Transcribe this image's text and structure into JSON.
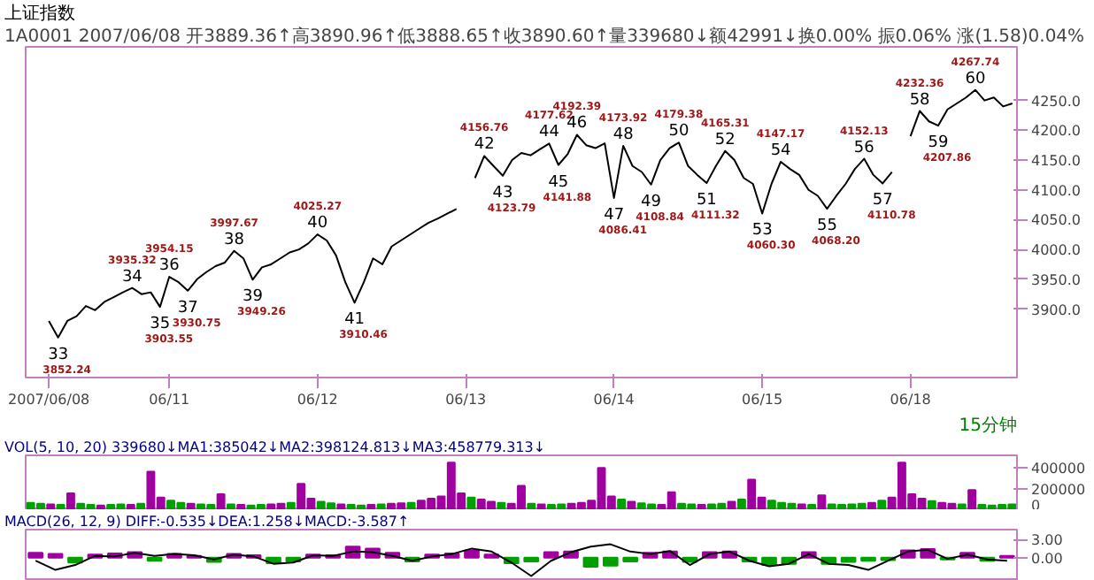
{
  "chart_data": [
    {
      "type": "line",
      "title": "上证指数",
      "subtitle": "1A0001 2007/06/08 开3889.36↑高3890.96↑低3888.65↑收3890.60↑量339680↓额42991↓换0.00% 振0.06% 涨(1.58)0.04%",
      "color": "#000000",
      "categories": [
        "2007/06/08",
        null,
        null,
        null,
        null,
        null,
        null,
        null,
        null,
        null,
        null,
        null,
        null,
        "06/11",
        null,
        null,
        null,
        null,
        null,
        null,
        null,
        null,
        null,
        null,
        null,
        null,
        null,
        null,
        null,
        "06/12",
        null,
        null,
        null,
        null,
        null,
        null,
        null,
        null,
        null,
        null,
        null,
        null,
        null,
        null,
        null,
        "06/13",
        null,
        null,
        null,
        null,
        null,
        null,
        null,
        null,
        null,
        null,
        null,
        null,
        null,
        null,
        null,
        "06/14",
        null,
        null,
        null,
        null,
        null,
        null,
        null,
        null,
        null,
        null,
        null,
        null,
        null,
        null,
        null,
        "06/15",
        null,
        null,
        null,
        null,
        null,
        null,
        null,
        null,
        null,
        null,
        null,
        null,
        null,
        null,
        null,
        "06/18",
        null,
        null,
        null,
        null,
        null,
        null,
        null,
        null,
        null,
        null,
        null
      ],
      "values": [
        3880,
        3852.24,
        3880,
        3888,
        3905,
        3898,
        3912,
        3920,
        3928,
        3935.32,
        3925,
        3928,
        3903.55,
        3954.15,
        3945,
        3930.75,
        3950,
        3962,
        3972,
        3978,
        3997.67,
        3985,
        3949.26,
        3970,
        3975,
        3985,
        3995,
        4000,
        4010,
        4025.27,
        4015,
        3990,
        3945,
        3910.46,
        3945,
        3985,
        3975,
        4005,
        4015,
        4025,
        4035,
        4045,
        4052,
        4060,
        4068,
        null,
        4120,
        4156.76,
        4140,
        4123.79,
        4150,
        4162,
        4158,
        4168,
        4177.62,
        4141.88,
        4160,
        4192.39,
        4175,
        4170,
        4178,
        4086.41,
        4173.92,
        4140,
        4130,
        4108.84,
        4150,
        4170,
        4179.38,
        4140,
        4125,
        4111.32,
        4140,
        4165.31,
        4150,
        4120,
        4110,
        4060.3,
        4110,
        4147.17,
        4135,
        4125,
        4100,
        4090,
        4068.2,
        4090,
        4110,
        4135,
        4152.13,
        4125,
        4110.78,
        4130,
        null,
        4190,
        4232.36,
        4215,
        4207.86,
        4235,
        4245,
        4255,
        4267.74,
        4250,
        4255,
        4240,
        4245
      ],
      "value_labels": [
        null,
        "3852.24",
        null,
        null,
        null,
        null,
        null,
        null,
        null,
        "3935.32",
        null,
        null,
        "3903.55",
        "3954.15",
        null,
        "3930.75",
        null,
        null,
        null,
        null,
        "3997.67",
        null,
        "3949.26",
        null,
        null,
        null,
        null,
        null,
        null,
        "4025.27",
        null,
        null,
        null,
        "3910.46",
        null,
        null,
        null,
        null,
        null,
        null,
        null,
        null,
        null,
        null,
        null,
        null,
        null,
        "4156.76",
        null,
        "4123.79",
        null,
        null,
        null,
        null,
        "4177.62",
        "4141.88",
        null,
        "4192.39",
        null,
        null,
        null,
        "4086.41",
        "4173.92",
        null,
        null,
        "4108.84",
        null,
        null,
        "4179.38",
        null,
        null,
        "4111.32",
        null,
        "4165.31",
        null,
        null,
        null,
        "4060.30",
        null,
        "4147.17",
        null,
        null,
        null,
        null,
        "4068.20",
        null,
        null,
        null,
        "4152.13",
        null,
        "4110.78",
        null,
        null,
        null,
        "4232.36",
        null,
        "4207.86",
        null,
        null,
        null,
        "4267.74",
        null,
        null,
        null,
        null
      ],
      "ylim": [
        3785,
        4340
      ],
      "yticks": [
        {
          "value": 3900,
          "label": "3900.0"
        },
        {
          "value": 3950,
          "label": "3950.0"
        },
        {
          "value": 4000,
          "label": "4000.0"
        },
        {
          "value": 4050,
          "label": "4050.0"
        },
        {
          "value": 4100,
          "label": "4100.0"
        },
        {
          "value": 4150,
          "label": "4150.0"
        },
        {
          "value": 4200,
          "label": "4200.0"
        },
        {
          "value": 4250,
          "label": "4250.0"
        }
      ],
      "annotations": [
        {
          "text": "33",
          "y": 3852.24
        },
        {
          "text": "34",
          "y": 3935.32
        },
        {
          "text": "35",
          "y": 3903.55
        },
        {
          "text": "36",
          "y": 3954.15
        },
        {
          "text": "37",
          "y": 3930.75
        },
        {
          "text": "38",
          "y": 3997.67
        },
        {
          "text": "39",
          "y": 3949.26
        },
        {
          "text": "40",
          "y": 4025.27
        },
        {
          "text": "41",
          "y": 3910.46
        },
        {
          "text": "42",
          "y": 4156.76
        },
        {
          "text": "43",
          "y": 4123.79
        },
        {
          "text": "44",
          "y": 4177.62
        },
        {
          "text": "45",
          "y": 4141.88
        },
        {
          "text": "46",
          "y": 4192.39
        },
        {
          "text": "47",
          "y": 4086.41
        },
        {
          "text": "48",
          "y": 4173.92
        },
        {
          "text": "49",
          "y": 4108.84
        },
        {
          "text": "50",
          "y": 4179.38
        },
        {
          "text": "51",
          "y": 4111.32
        },
        {
          "text": "52",
          "y": 4165.31
        },
        {
          "text": "53",
          "y": 4060.3
        },
        {
          "text": "54",
          "y": 4147.17
        },
        {
          "text": "55",
          "y": 4068.2
        },
        {
          "text": "56",
          "y": 4152.13
        },
        {
          "text": "57",
          "y": 4110.78
        },
        {
          "text": "58",
          "y": 4232.36
        },
        {
          "text": "59",
          "y": 4207.86
        },
        {
          "text": "60",
          "y": 4267.74
        },
        "15分钟"
      ]
    },
    {
      "type": "bar",
      "title": "VOL(5, 10, 20) 339680↓MA1:385042↓MA2:398124.813↓MA3:458779.313↓",
      "categories": [
        null,
        null,
        null,
        null,
        null,
        null,
        null,
        null,
        null,
        null,
        null,
        null,
        null,
        null,
        null,
        null,
        null,
        null,
        null,
        null,
        null,
        null,
        null,
        null,
        null,
        null,
        null,
        null,
        null,
        null,
        null,
        null,
        null,
        null,
        null,
        null,
        null,
        null,
        null,
        null,
        null,
        null,
        null,
        null,
        null,
        null,
        null,
        null,
        null,
        null,
        null,
        null,
        null,
        null,
        null,
        null,
        null,
        null,
        null,
        null,
        null,
        null,
        null,
        null,
        null,
        null,
        null,
        null,
        null,
        null,
        null,
        null,
        null,
        null,
        null,
        null,
        null,
        null,
        null,
        null,
        null,
        null,
        null,
        null,
        null,
        null,
        null,
        null,
        null,
        null,
        null,
        null,
        null,
        null,
        null,
        null,
        null,
        null,
        null
      ],
      "values": [
        70000,
        60000,
        55000,
        50000,
        160000,
        60000,
        50000,
        45000,
        50000,
        55000,
        50000,
        60000,
        365000,
        120000,
        90000,
        70000,
        60000,
        55000,
        50000,
        150000,
        55000,
        50000,
        45000,
        50000,
        55000,
        60000,
        70000,
        250000,
        110000,
        80000,
        65000,
        55000,
        50000,
        45000,
        50000,
        55000,
        60000,
        65000,
        70000,
        90000,
        110000,
        130000,
        450000,
        160000,
        120000,
        100000,
        80000,
        70000,
        60000,
        230000,
        60000,
        55000,
        50000,
        55000,
        60000,
        70000,
        90000,
        400000,
        130000,
        100000,
        80000,
        65000,
        55000,
        50000,
        170000,
        60000,
        55000,
        50000,
        55000,
        60000,
        80000,
        100000,
        290000,
        120000,
        90000,
        70000,
        60000,
        55000,
        50000,
        140000,
        55000,
        50000,
        55000,
        60000,
        70000,
        90000,
        120000,
        450000,
        150000,
        110000,
        85000,
        70000,
        60000,
        55000,
        190000,
        50000,
        45000,
        50000,
        55000
      ],
      "colors": [
        "#00a000",
        "#00a000",
        "#a000a0",
        "#00a000",
        "#a000a0",
        "#00a000",
        "#00a000",
        "#a000a0",
        "#00a000",
        "#00a000",
        "#a000a0",
        "#00a000",
        "#a000a0",
        "#a000a0",
        "#00a000",
        "#00a000",
        "#a000a0",
        "#00a000",
        "#00a000",
        "#a000a0",
        "#00a000",
        "#a000a0",
        "#00a000",
        "#00a000",
        "#a000a0",
        "#a000a0",
        "#00a000",
        "#a000a0",
        "#a000a0",
        "#00a000",
        "#00a000",
        "#a000a0",
        "#00a000",
        "#00a000",
        "#a000a0",
        "#00a000",
        "#a000a0",
        "#a000a0",
        "#00a000",
        "#a000a0",
        "#a000a0",
        "#a000a0",
        "#a000a0",
        "#a000a0",
        "#00a000",
        "#a000a0",
        "#a000a0",
        "#00a000",
        "#a000a0",
        "#a000a0",
        "#00a000",
        "#a000a0",
        "#00a000",
        "#00a000",
        "#a000a0",
        "#a000a0",
        "#a000a0",
        "#a000a0",
        "#a000a0",
        "#00a000",
        "#a000a0",
        "#00a000",
        "#00a000",
        "#a000a0",
        "#a000a0",
        "#00a000",
        "#00a000",
        "#a000a0",
        "#00a000",
        "#00a000",
        "#a000a0",
        "#00a000",
        "#a000a0",
        "#a000a0",
        "#00a000",
        "#00a000",
        "#00a000",
        "#a000a0",
        "#00a000",
        "#a000a0",
        "#00a000",
        "#00a000",
        "#00a000",
        "#00a000",
        "#a000a0",
        "#00a000",
        "#a000a0",
        "#a000a0",
        "#a000a0",
        "#a000a0",
        "#00a000",
        "#a000a0",
        "#a000a0",
        "#00a000",
        "#a000a0",
        "#00a000",
        "#00a000",
        "#00a000",
        "#00a000"
      ],
      "ylim": [
        0,
        520000
      ],
      "yticks": [
        0,
        200000,
        400000
      ],
      "tick_labels": "y"
    },
    {
      "type": "bar",
      "title": "MACD(26, 12, 9) DIFF:-0.535↓DEA:1.258↓MACD:-3.587↑",
      "categories": [
        null,
        null,
        null,
        null,
        null,
        null,
        null,
        null,
        null,
        null,
        null,
        null,
        null,
        null,
        null,
        null,
        null,
        null,
        null,
        null,
        null,
        null,
        null,
        null,
        null,
        null,
        null,
        null,
        null,
        null,
        null,
        null,
        null,
        null,
        null,
        null,
        null,
        null,
        null,
        null,
        null,
        null,
        null,
        null,
        null,
        null,
        null,
        null,
        null,
        null
      ],
      "series": [
        {
          "type": "bar",
          "values": [
            0.8,
            0.6,
            -0.8,
            0.5,
            0.7,
            0.9,
            -0.5,
            0.6,
            0.3,
            -0.7,
            0.6,
            0.4,
            -0.9,
            -0.6,
            0.5,
            0.4,
            1.8,
            1.5,
            0.8,
            -0.6,
            0.5,
            0.7,
            1.2,
            0.5,
            -0.9,
            -0.6,
            0.9,
            1.0,
            -1.5,
            -1.3,
            -0.6,
            0.8,
            1.0,
            -0.7,
            0.9,
            1.0,
            -0.6,
            -1.2,
            -1.0,
            0.9,
            -1.0,
            -0.7,
            -0.5,
            -0.4,
            1.2,
            1.4,
            -0.3,
            0.8,
            -0.5,
            0.3
          ],
          "colors": [
            "#a000a0",
            "#a000a0",
            "#00a000",
            "#a000a0",
            "#a000a0",
            "#a000a0",
            "#00a000",
            "#a000a0",
            "#a000a0",
            "#00a000",
            "#a000a0",
            "#a000a0",
            "#00a000",
            "#00a000",
            "#a000a0",
            "#a000a0",
            "#a000a0",
            "#a000a0",
            "#a000a0",
            "#00a000",
            "#a000a0",
            "#a000a0",
            "#a000a0",
            "#a000a0",
            "#00a000",
            "#00a000",
            "#a000a0",
            "#a000a0",
            "#00a000",
            "#00a000",
            "#00a000",
            "#a000a0",
            "#a000a0",
            "#00a000",
            "#a000a0",
            "#a000a0",
            "#00a000",
            "#00a000",
            "#00a000",
            "#a000a0",
            "#00a000",
            "#00a000",
            "#00a000",
            "#00a000",
            "#a000a0",
            "#a000a0",
            "#00a000",
            "#a000a0",
            "#00a000",
            "#a000a0"
          ]
        },
        {
          "type": "line",
          "color": "#000000",
          "values": [
            -0.5,
            -2.0,
            -1.2,
            0.3,
            0.2,
            0.8,
            0.3,
            0.6,
            0.4,
            -0.3,
            0.5,
            0.2,
            -1.0,
            -0.8,
            0.4,
            0.3,
            1.0,
            0.9,
            0.3,
            -0.5,
            0.2,
            0.6,
            1.5,
            1.0,
            -0.8,
            -3.0,
            -0.5,
            0.9,
            1.8,
            2.2,
            1.0,
            0.6,
            1.1,
            -1.2,
            0.6,
            1.0,
            -0.5,
            -1.4,
            -1.0,
            0.6,
            -1.0,
            -1.2,
            -2.0,
            -0.5,
            1.0,
            1.3,
            -0.2,
            0.5,
            -0.3,
            -0.5
          ]
        }
      ],
      "ylim": [
        -3.8,
        4.6
      ],
      "yticks": [
        {
          "value": 3,
          "label": "3.00"
        },
        {
          "value": 0,
          "label": "0.00"
        }
      ],
      "tick_labels": "y"
    }
  ]
}
